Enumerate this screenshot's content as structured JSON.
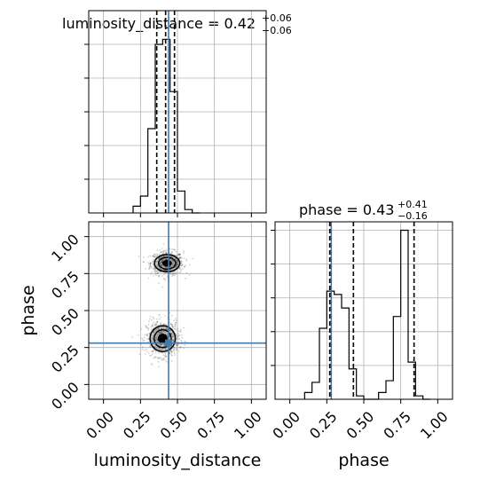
{
  "chart_data": {
    "type": "corner",
    "parameters": [
      "luminosity_distance",
      "phase"
    ],
    "colors": {
      "truth": "#4477aa",
      "hist": "#000000",
      "grid": "#b0b0b0"
    },
    "truth": {
      "luminosity_distance": 0.44,
      "phase": 0.28
    },
    "panels": {
      "luminosity_distance_hist": {
        "title_main": "luminosity_distance = 0.42",
        "title_sup": "+0.06",
        "title_sub": "−0.06",
        "xlim": [
          -0.1,
          1.1
        ],
        "bin_edges": [
          0.2,
          0.25,
          0.3,
          0.35,
          0.4,
          0.45,
          0.5,
          0.55,
          0.6,
          0.65
        ],
        "counts": [
          0.04,
          0.1,
          0.5,
          1.0,
          1.03,
          0.72,
          0.13,
          0.02,
          0.0
        ],
        "ylim": [
          0,
          1.2
        ],
        "quantiles": [
          0.36,
          0.42,
          0.48
        ]
      },
      "phase_hist": {
        "title_main": "phase = 0.43",
        "title_sup": "+0.41",
        "title_sub": "−0.16",
        "xlim": [
          -0.1,
          1.1
        ],
        "bin_edges": [
          0.1,
          0.15,
          0.2,
          0.25,
          0.3,
          0.35,
          0.4,
          0.45,
          0.5,
          0.55,
          0.6,
          0.65,
          0.7,
          0.75,
          0.8,
          0.85,
          0.9,
          0.95
        ],
        "counts": [
          0.04,
          0.1,
          0.42,
          0.64,
          0.62,
          0.54,
          0.18,
          0.02,
          0.0,
          0.0,
          0.04,
          0.11,
          0.49,
          1.0,
          0.22,
          0.02,
          0.0
        ],
        "ylim": [
          0,
          1.05
        ],
        "quantiles": [
          0.27,
          0.43,
          0.84
        ]
      },
      "joint": {
        "xlim": [
          -0.1,
          1.1
        ],
        "ylim": [
          -0.1,
          1.1
        ],
        "modes": [
          {
            "x": 0.43,
            "y": 0.82,
            "sx": 0.055,
            "sy": 0.04
          },
          {
            "x": 0.4,
            "y": 0.31,
            "sx": 0.055,
            "sy": 0.06
          }
        ]
      }
    },
    "ticks": {
      "values": [
        0.0,
        0.25,
        0.5,
        0.75,
        1.0
      ],
      "labels": [
        "0.00",
        "0.25",
        "0.50",
        "0.75",
        "1.00"
      ]
    },
    "xlabels": [
      "luminosity_distance",
      "phase"
    ],
    "ylabel": "phase"
  }
}
